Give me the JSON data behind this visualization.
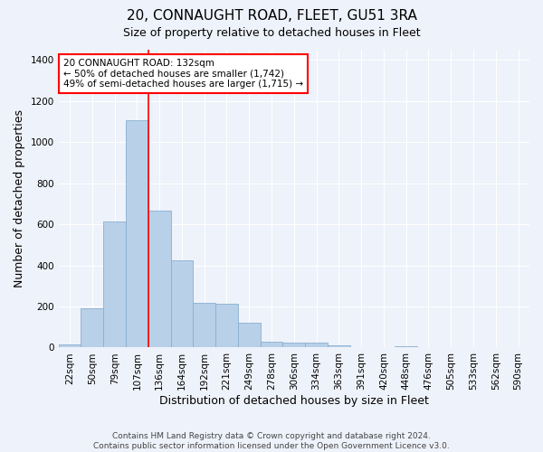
{
  "title": "20, CONNAUGHT ROAD, FLEET, GU51 3RA",
  "subtitle": "Size of property relative to detached houses in Fleet",
  "xlabel": "Distribution of detached houses by size in Fleet",
  "ylabel": "Number of detached properties",
  "categories": [
    "22sqm",
    "50sqm",
    "79sqm",
    "107sqm",
    "136sqm",
    "164sqm",
    "192sqm",
    "221sqm",
    "249sqm",
    "278sqm",
    "306sqm",
    "334sqm",
    "363sqm",
    "391sqm",
    "420sqm",
    "448sqm",
    "476sqm",
    "505sqm",
    "533sqm",
    "562sqm",
    "590sqm"
  ],
  "values": [
    15,
    193,
    612,
    1105,
    665,
    425,
    218,
    215,
    120,
    30,
    25,
    25,
    10,
    3,
    0,
    8,
    0,
    0,
    0,
    0,
    0
  ],
  "bar_color": "#b8d0e8",
  "bar_edge_color": "#8ab0d0",
  "marker_line_index": 4,
  "annotation_line1": "20 CONNAUGHT ROAD: 132sqm",
  "annotation_line2": "← 50% of detached houses are smaller (1,742)",
  "annotation_line3": "49% of semi-detached houses are larger (1,715) →",
  "ylim": [
    0,
    1450
  ],
  "yticks": [
    0,
    200,
    400,
    600,
    800,
    1000,
    1200,
    1400
  ],
  "footer_line1": "Contains HM Land Registry data © Crown copyright and database right 2024.",
  "footer_line2": "Contains public sector information licensed under the Open Government Licence v3.0.",
  "bg_color": "#eef2fa",
  "grid_color": "#ffffff",
  "title_fontsize": 11,
  "subtitle_fontsize": 9,
  "axis_label_fontsize": 9,
  "tick_fontsize": 7.5,
  "footer_fontsize": 6.5
}
